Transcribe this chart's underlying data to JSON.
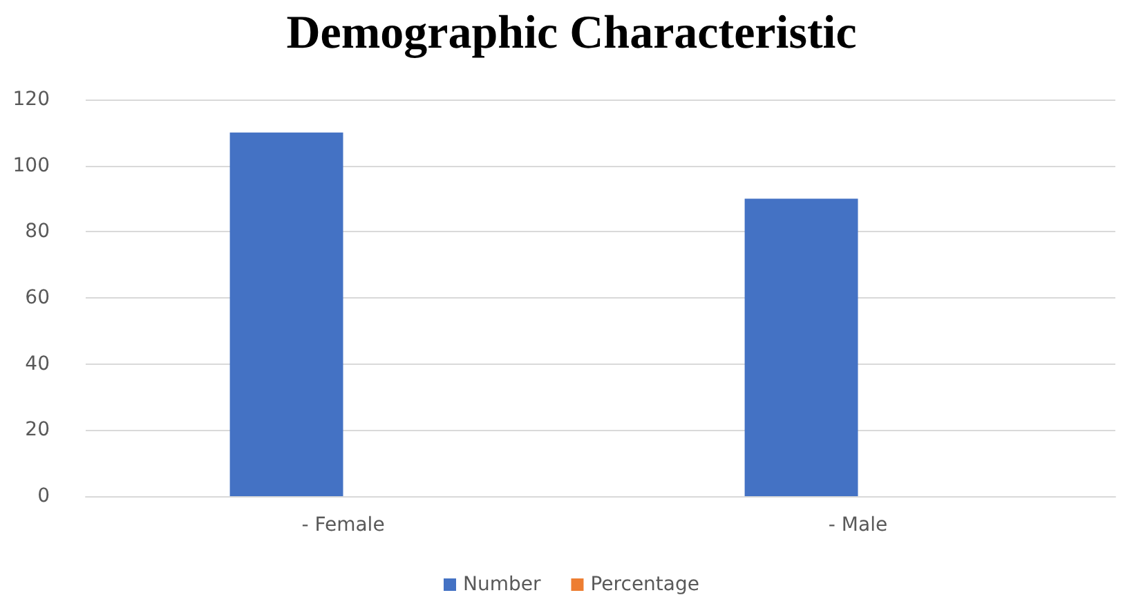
{
  "chart_data": {
    "type": "bar",
    "title": "Demographic Characteristic",
    "categories": [
      "- Female",
      "- Male"
    ],
    "series": [
      {
        "name": "Number",
        "color": "#4472c4",
        "values": [
          110,
          90
        ]
      },
      {
        "name": "Percentage",
        "color": "#ed7d31",
        "values": [
          null,
          null
        ]
      }
    ],
    "ylim": [
      0,
      120
    ],
    "yticks": [
      0,
      20,
      40,
      60,
      80,
      100,
      120
    ],
    "grid": "y",
    "legend": "bottom"
  }
}
